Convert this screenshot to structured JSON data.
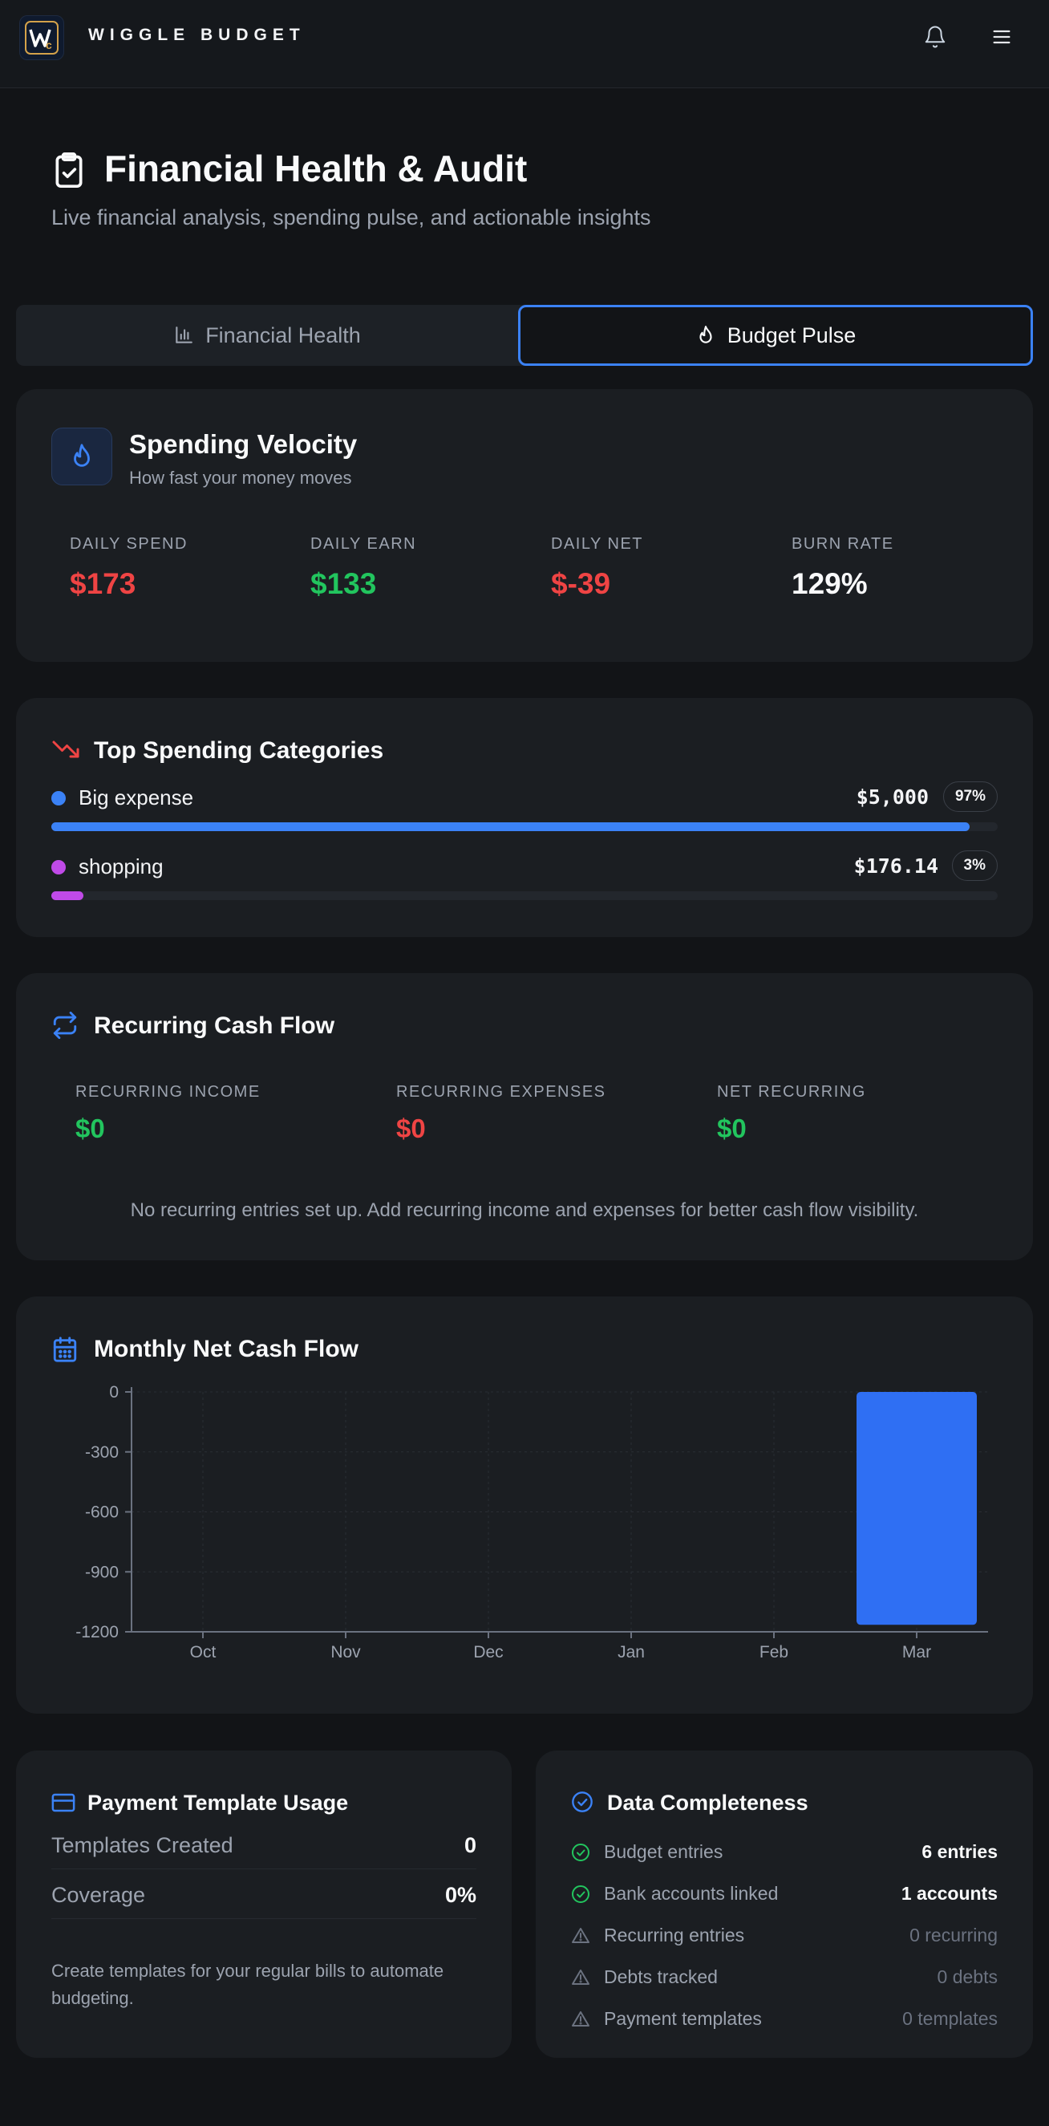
{
  "app": {
    "brand": "WIGGLE BUDGET",
    "logo_text": "W"
  },
  "header": {
    "title": "Financial Health & Audit",
    "subtitle": "Live financial analysis, spending pulse, and actionable insights"
  },
  "tabs": [
    {
      "label": "Financial Health",
      "active": false,
      "icon": "bar-chart-icon"
    },
    {
      "label": "Budget Pulse",
      "active": true,
      "icon": "flame-icon"
    }
  ],
  "velocity": {
    "title": "Spending Velocity",
    "subtitle": "How fast your money moves",
    "stats": [
      {
        "label": "DAILY SPEND",
        "value": "$173",
        "color": "#ef4444"
      },
      {
        "label": "DAILY EARN",
        "value": "$133",
        "color": "#22c55e"
      },
      {
        "label": "DAILY NET",
        "value": "$-39",
        "color": "#ef4444"
      },
      {
        "label": "BURN RATE",
        "value": "129%",
        "color": "#f9fafb"
      }
    ]
  },
  "top_categories": {
    "title": "Top Spending Categories",
    "items": [
      {
        "name": "Big expense",
        "amount": "$5,000",
        "percent": "97%",
        "share": 0.97,
        "color": "#3b82f6"
      },
      {
        "name": "shopping",
        "amount": "$176.14",
        "percent": "3%",
        "share": 0.03,
        "color": "#c04ae8"
      }
    ]
  },
  "recurring": {
    "title": "Recurring Cash Flow",
    "stats": [
      {
        "label": "RECURRING INCOME",
        "value": "$0"
      },
      {
        "label": "RECURRING EXPENSES",
        "value": "$0"
      },
      {
        "label": "NET RECURRING",
        "value": "$0"
      }
    ],
    "note": "No recurring entries set up. Add recurring income and expenses for better cash flow visibility."
  },
  "monthly": {
    "title": "Monthly Net Cash Flow"
  },
  "chart_data": {
    "type": "bar",
    "categories": [
      "Oct",
      "Nov",
      "Dec",
      "Jan",
      "Feb",
      "Mar"
    ],
    "values": [
      0,
      0,
      0,
      0,
      0,
      -1165
    ],
    "yticks": [
      "0",
      "-300",
      "-600",
      "-900",
      "-1200"
    ],
    "ylim": [
      -1200,
      0
    ],
    "title": "Monthly Net Cash Flow",
    "xlabel": "",
    "ylabel": "",
    "bar_color": "#2f6ff3",
    "grid": true
  },
  "templates": {
    "title": "Payment Template Usage",
    "rows": [
      {
        "label": "Templates Created",
        "value": "0"
      },
      {
        "label": "Coverage",
        "value": "0%"
      }
    ],
    "note": "Create templates for your regular bills to automate budgeting."
  },
  "completeness": {
    "title": "Data Completeness",
    "items": [
      {
        "label": "Budget entries",
        "value": "6 entries",
        "ok": true
      },
      {
        "label": "Bank accounts linked",
        "value": "1 accounts",
        "ok": true
      },
      {
        "label": "Recurring entries",
        "value": "0 recurring",
        "ok": false
      },
      {
        "label": "Debts tracked",
        "value": "0 debts",
        "ok": false
      },
      {
        "label": "Payment templates",
        "value": "0 templates",
        "ok": false
      }
    ]
  }
}
